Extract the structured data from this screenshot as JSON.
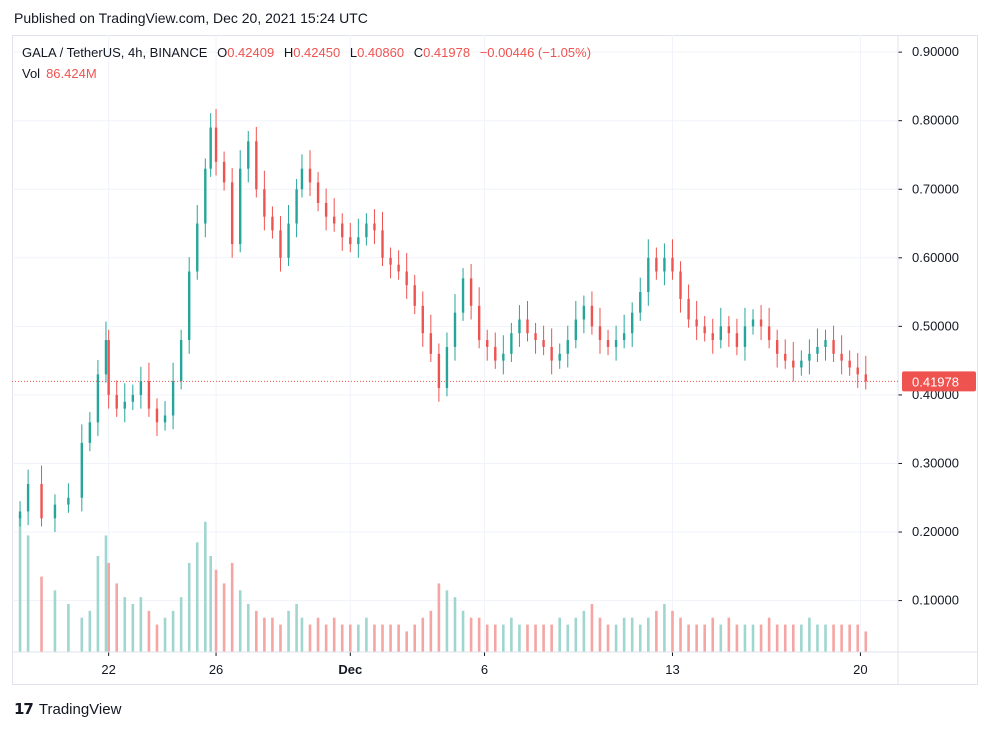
{
  "header": {
    "published": "Published on TradingView.com, Dec 20, 2021 15:24 UTC"
  },
  "legend": {
    "symbol": "GALA / TetherUS, 4h, BINANCE",
    "open_label": "O",
    "open": "0.42409",
    "high_label": "H",
    "high": "0.42450",
    "low_label": "L",
    "low": "0.40860",
    "close_label": "C",
    "close": "0.41978",
    "change": "−0.00446 (−1.05%)",
    "vol_label": "Vol",
    "vol": "86.424M"
  },
  "footer": {
    "brand": "TradingView",
    "logo_icon": "tradingview-logo-icon"
  },
  "colors": {
    "up": "#26a69a",
    "down": "#ef5350",
    "up_vol": "#9fd6cf",
    "down_vol": "#f5a5a3",
    "grid": "#f0f3fa"
  },
  "chart_data": {
    "type": "candlestick",
    "price_axis": {
      "ticks": [
        "0.90000",
        "0.80000",
        "0.70000",
        "0.60000",
        "0.50000",
        "0.40000",
        "0.30000",
        "0.20000",
        "0.10000"
      ],
      "ylim": [
        0.025,
        0.925
      ]
    },
    "time_axis": {
      "ticks": [
        {
          "label": "22",
          "day": 22
        },
        {
          "label": "26",
          "day": 26
        },
        {
          "label": "Dec",
          "day": 31
        },
        {
          "label": "6",
          "day": 36
        },
        {
          "label": "13",
          "day": 43
        },
        {
          "label": "20",
          "day": 50
        }
      ]
    },
    "last_price": "0.41978",
    "series": [
      {
        "name": "price",
        "points": [
          [
            18.7,
            0.23
          ],
          [
            19.0,
            0.27
          ],
          [
            19.5,
            0.22
          ],
          [
            20.0,
            0.24
          ],
          [
            20.5,
            0.25
          ],
          [
            21.0,
            0.33
          ],
          [
            21.3,
            0.36
          ],
          [
            21.6,
            0.43
          ],
          [
            21.9,
            0.48
          ],
          [
            22.0,
            0.4
          ],
          [
            22.3,
            0.38
          ],
          [
            22.6,
            0.39
          ],
          [
            22.9,
            0.4
          ],
          [
            23.2,
            0.42
          ],
          [
            23.5,
            0.38
          ],
          [
            23.8,
            0.36
          ],
          [
            24.1,
            0.37
          ],
          [
            24.4,
            0.42
          ],
          [
            24.7,
            0.48
          ],
          [
            25.0,
            0.58
          ],
          [
            25.3,
            0.65
          ],
          [
            25.6,
            0.73
          ],
          [
            25.8,
            0.79
          ],
          [
            26.0,
            0.74
          ],
          [
            26.3,
            0.71
          ],
          [
            26.6,
            0.62
          ],
          [
            26.9,
            0.73
          ],
          [
            27.2,
            0.77
          ],
          [
            27.5,
            0.7
          ],
          [
            27.8,
            0.66
          ],
          [
            28.1,
            0.64
          ],
          [
            28.4,
            0.6
          ],
          [
            28.7,
            0.65
          ],
          [
            29.0,
            0.7
          ],
          [
            29.2,
            0.73
          ],
          [
            29.5,
            0.71
          ],
          [
            29.8,
            0.68
          ],
          [
            30.1,
            0.66
          ],
          [
            30.4,
            0.65
          ],
          [
            30.7,
            0.63
          ],
          [
            31.0,
            0.62
          ],
          [
            31.3,
            0.63
          ],
          [
            31.6,
            0.65
          ],
          [
            31.9,
            0.64
          ],
          [
            32.2,
            0.6
          ],
          [
            32.5,
            0.59
          ],
          [
            32.8,
            0.58
          ],
          [
            33.1,
            0.56
          ],
          [
            33.4,
            0.53
          ],
          [
            33.7,
            0.49
          ],
          [
            34.0,
            0.46
          ],
          [
            34.3,
            0.41
          ],
          [
            34.6,
            0.47
          ],
          [
            34.9,
            0.52
          ],
          [
            35.2,
            0.57
          ],
          [
            35.5,
            0.53
          ],
          [
            35.8,
            0.48
          ],
          [
            36.1,
            0.47
          ],
          [
            36.4,
            0.45
          ],
          [
            36.7,
            0.46
          ],
          [
            37.0,
            0.49
          ],
          [
            37.3,
            0.51
          ],
          [
            37.6,
            0.49
          ],
          [
            37.9,
            0.48
          ],
          [
            38.2,
            0.47
          ],
          [
            38.5,
            0.45
          ],
          [
            38.8,
            0.46
          ],
          [
            39.1,
            0.48
          ],
          [
            39.4,
            0.51
          ],
          [
            39.7,
            0.53
          ],
          [
            40.0,
            0.5
          ],
          [
            40.3,
            0.48
          ],
          [
            40.6,
            0.47
          ],
          [
            40.9,
            0.48
          ],
          [
            41.2,
            0.49
          ],
          [
            41.5,
            0.52
          ],
          [
            41.8,
            0.55
          ],
          [
            42.1,
            0.6
          ],
          [
            42.4,
            0.58
          ],
          [
            42.7,
            0.6
          ],
          [
            43.0,
            0.58
          ],
          [
            43.3,
            0.54
          ],
          [
            43.6,
            0.51
          ],
          [
            43.9,
            0.5
          ],
          [
            44.2,
            0.49
          ],
          [
            44.5,
            0.48
          ],
          [
            44.8,
            0.5
          ],
          [
            45.1,
            0.49
          ],
          [
            45.4,
            0.47
          ],
          [
            45.7,
            0.5
          ],
          [
            46.0,
            0.51
          ],
          [
            46.3,
            0.5
          ],
          [
            46.6,
            0.48
          ],
          [
            46.9,
            0.46
          ],
          [
            47.2,
            0.45
          ],
          [
            47.5,
            0.44
          ],
          [
            47.8,
            0.45
          ],
          [
            48.1,
            0.46
          ],
          [
            48.4,
            0.47
          ],
          [
            48.7,
            0.48
          ],
          [
            49.0,
            0.46
          ],
          [
            49.3,
            0.45
          ],
          [
            49.6,
            0.44
          ],
          [
            49.9,
            0.43
          ],
          [
            50.2,
            0.42
          ]
        ]
      },
      {
        "name": "volume",
        "values": [
          0.2,
          0.17,
          0.11,
          0.09,
          0.07,
          0.05,
          0.06,
          0.14,
          0.17,
          0.13,
          0.1,
          0.08,
          0.07,
          0.08,
          0.06,
          0.04,
          0.05,
          0.06,
          0.08,
          0.13,
          0.16,
          0.19,
          0.14,
          0.12,
          0.1,
          0.13,
          0.09,
          0.07,
          0.06,
          0.05,
          0.05,
          0.04,
          0.06,
          0.07,
          0.05,
          0.04,
          0.05,
          0.04,
          0.05,
          0.04,
          0.04,
          0.04,
          0.05,
          0.04,
          0.04,
          0.04,
          0.04,
          0.03,
          0.04,
          0.05,
          0.06,
          0.1,
          0.09,
          0.08,
          0.06,
          0.05,
          0.05,
          0.04,
          0.04,
          0.04,
          0.05,
          0.04,
          0.04,
          0.04,
          0.04,
          0.04,
          0.05,
          0.04,
          0.05,
          0.06,
          0.07,
          0.05,
          0.04,
          0.04,
          0.05,
          0.05,
          0.04,
          0.05,
          0.06,
          0.07,
          0.06,
          0.05,
          0.04,
          0.04,
          0.04,
          0.05,
          0.04,
          0.05,
          0.04,
          0.04,
          0.04,
          0.04,
          0.05,
          0.04,
          0.04,
          0.04,
          0.04,
          0.05,
          0.04,
          0.04,
          0.04,
          0.04,
          0.04,
          0.04,
          0.03
        ]
      }
    ]
  }
}
